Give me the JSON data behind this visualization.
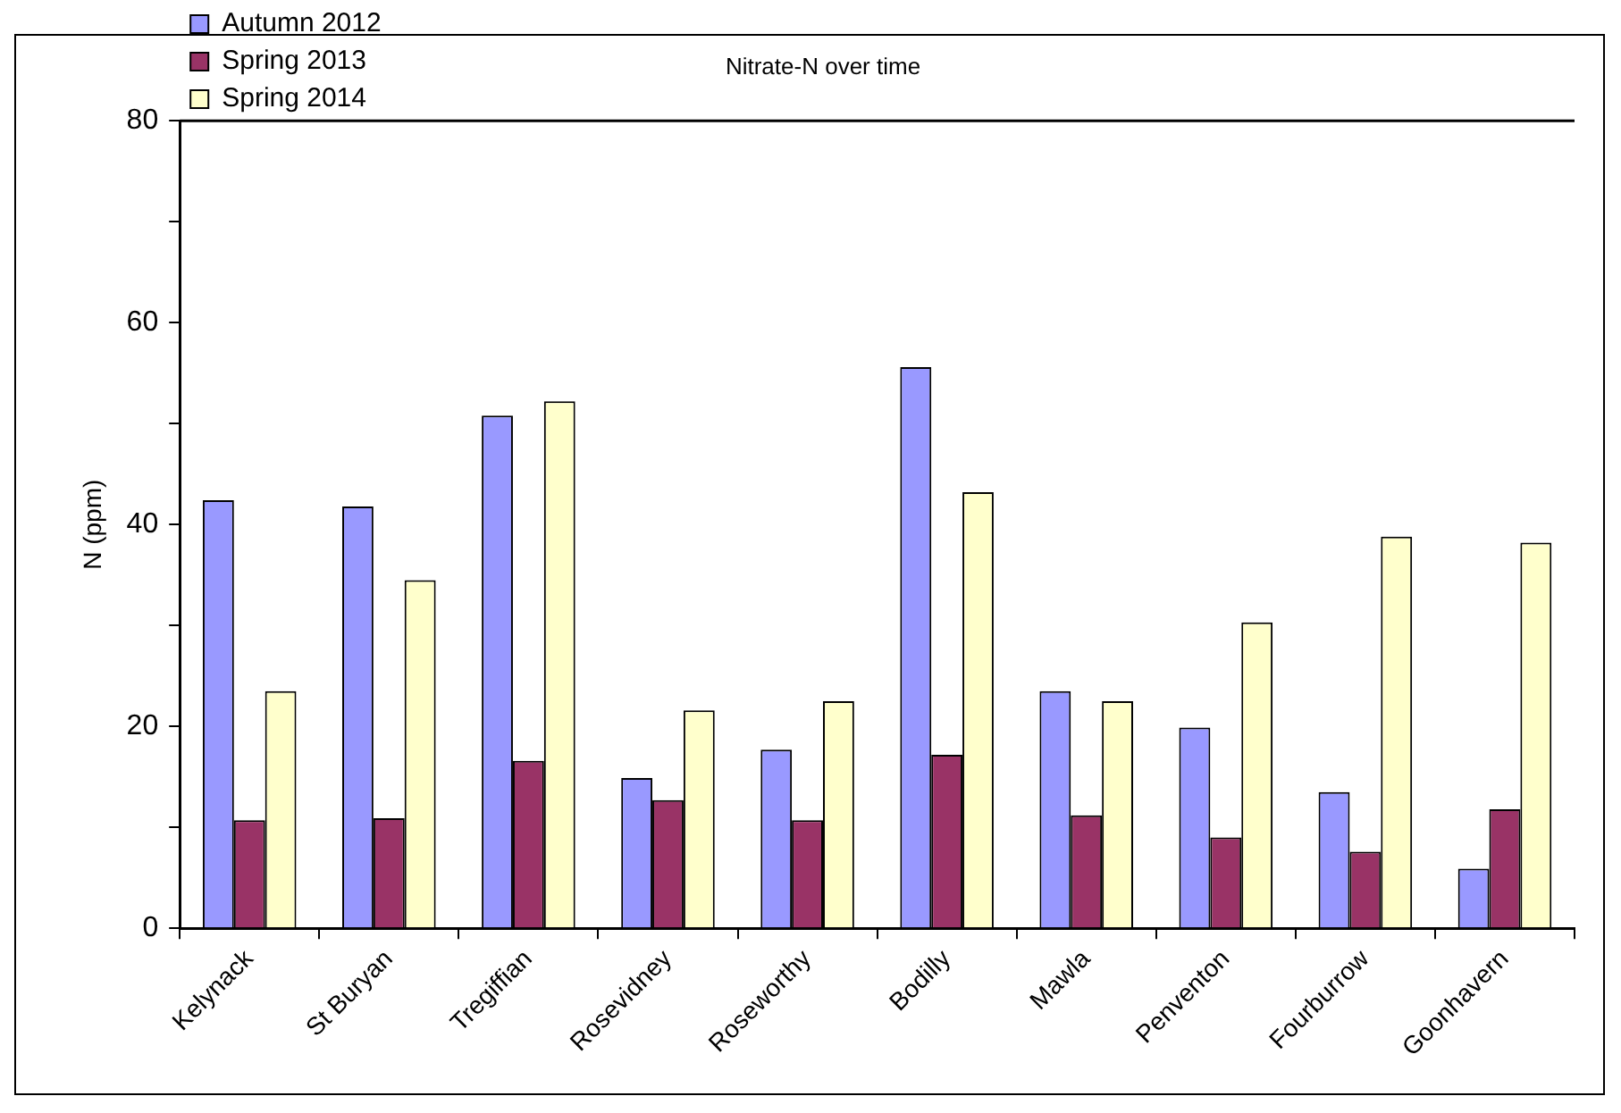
{
  "chart_data": {
    "type": "bar",
    "title": "Nitrate-N over time",
    "ylabel": "N (ppm)",
    "categories": [
      "Kelynack",
      "St Buryan",
      "Tregiffian",
      "Rosevidney",
      "Roseworthy",
      "Bodilly",
      "Mawla",
      "Penventon",
      "Fourburrow",
      "Goonhavern"
    ],
    "series": [
      {
        "name": "Autumn 2012",
        "color": "#9999ff",
        "values": [
          42.4,
          41.8,
          50.8,
          14.9,
          17.7,
          55.6,
          23.5,
          19.9,
          13.5,
          5.9
        ]
      },
      {
        "name": "Spring 2013",
        "color": "#993366",
        "values": [
          10.7,
          10.9,
          16.6,
          12.7,
          10.7,
          17.2,
          11.2,
          9.0,
          7.6,
          11.8
        ]
      },
      {
        "name": "Spring 2014",
        "color": "#ffffcc",
        "values": [
          23.5,
          34.5,
          52.2,
          21.6,
          22.5,
          43.2,
          22.5,
          30.3,
          38.8,
          38.2
        ]
      }
    ],
    "ylim": [
      0,
      80
    ],
    "yticks": [
      0,
      {
        "value": 10,
        "label": null
      },
      20,
      {
        "value": 30,
        "label": null
      },
      40,
      {
        "value": 50,
        "label": null
      },
      60,
      {
        "value": 70,
        "label": null
      },
      80
    ],
    "grid": false,
    "legend": "top left"
  }
}
